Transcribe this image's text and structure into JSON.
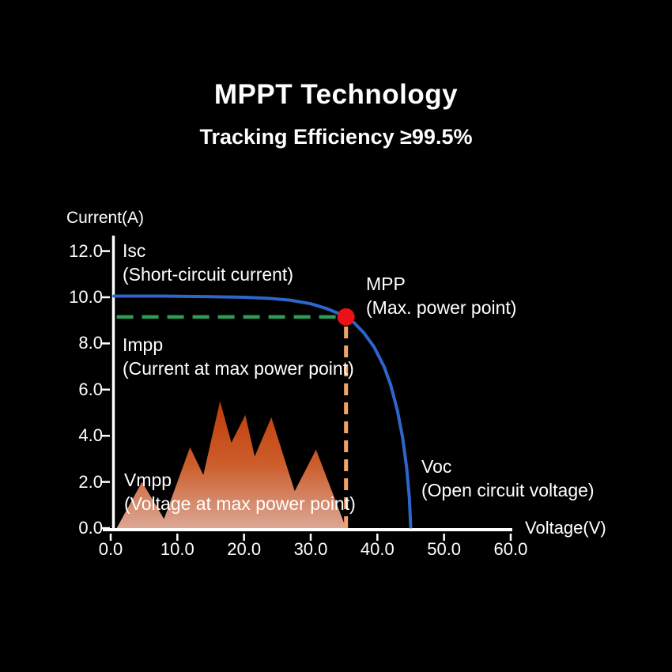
{
  "header": {
    "title": "MPPT Technology",
    "subtitle": "Tracking Efficiency ≥99.5%"
  },
  "chart_data": {
    "type": "line",
    "title": "MPPT Technology",
    "subtitle": "Tracking Efficiency ≥99.5%",
    "xlabel": "Voltage(V)",
    "ylabel": "Current(A)",
    "xlim": [
      0,
      62
    ],
    "ylim": [
      0,
      12.8
    ],
    "grid": false,
    "x_ticks": [
      0,
      10,
      20,
      30,
      40,
      50,
      60
    ],
    "x_tick_labels": [
      "0.0",
      "10.0",
      "20.0",
      "30.0",
      "40.0",
      "50.0",
      "60.0"
    ],
    "y_ticks": [
      0,
      2,
      4,
      6,
      8,
      10,
      12
    ],
    "y_tick_labels": [
      "0.0",
      "2.0",
      "4.0",
      "6.0",
      "8.0",
      "10.0",
      "12.0"
    ],
    "iv_curve": {
      "name": "I-V curve",
      "color": "#2f66cc",
      "points": [
        [
          0.5,
          10.05
        ],
        [
          8,
          10.05
        ],
        [
          14,
          10.03
        ],
        [
          20,
          10.0
        ],
        [
          24,
          9.95
        ],
        [
          27,
          9.87
        ],
        [
          30,
          9.72
        ],
        [
          32.5,
          9.5
        ],
        [
          34,
          9.32
        ],
        [
          35.3,
          9.15
        ],
        [
          36.5,
          8.9
        ],
        [
          38,
          8.45
        ],
        [
          39.5,
          7.85
        ],
        [
          41,
          7.0
        ],
        [
          42,
          6.2
        ],
        [
          43,
          5.1
        ],
        [
          43.8,
          3.9
        ],
        [
          44.4,
          2.6
        ],
        [
          44.8,
          1.3
        ],
        [
          45,
          0.05
        ]
      ]
    },
    "impp_line": {
      "name": "Impp dashed guide",
      "style": "dashed",
      "color": "#2f9d57",
      "y": 9.15,
      "x_start": 0.9,
      "x_end": 34.2
    },
    "vmpp_line": {
      "name": "Vmpp dashed guide",
      "style": "dashed",
      "color": "#f4a368",
      "x": 35.3,
      "y_start": 0,
      "y_end": 8.9
    },
    "mpp_point": {
      "name": "MPP marker",
      "color": "#ea1218",
      "x": 35.3,
      "y": 9.15
    },
    "power_mountain": {
      "name": "power fluctuation silhouette",
      "gradient": [
        "#bf3b09",
        "#cc5e2c",
        "#dca795"
      ],
      "points": [
        [
          0.9,
          0
        ],
        [
          4.7,
          2.0
        ],
        [
          8.0,
          0.4
        ],
        [
          11.9,
          3.5
        ],
        [
          13.9,
          2.3
        ],
        [
          16.4,
          5.5
        ],
        [
          18.1,
          3.7
        ],
        [
          20.2,
          4.9
        ],
        [
          21.6,
          3.1
        ],
        [
          24.1,
          4.8
        ],
        [
          27.6,
          1.6
        ],
        [
          30.8,
          3.4
        ],
        [
          35.3,
          0
        ]
      ]
    },
    "key_values": {
      "Isc": 10.05,
      "Impp": 9.15,
      "Vmpp": 35.3,
      "Voc": 45.0
    },
    "annotations": [
      {
        "id": "isc",
        "title": "Isc",
        "desc": "(Short-circuit current)"
      },
      {
        "id": "mpp",
        "title": "MPP",
        "desc": "(Max. power point)"
      },
      {
        "id": "impp",
        "title": "Impp",
        "desc": "(Current at max power point)"
      },
      {
        "id": "vmpp",
        "title": "Vmpp",
        "desc": "(Voltage at max power point)"
      },
      {
        "id": "voc",
        "title": "Voc",
        "desc": "(Open circuit voltage)"
      }
    ],
    "axis_color": "#ffffff",
    "background": "#000000"
  }
}
